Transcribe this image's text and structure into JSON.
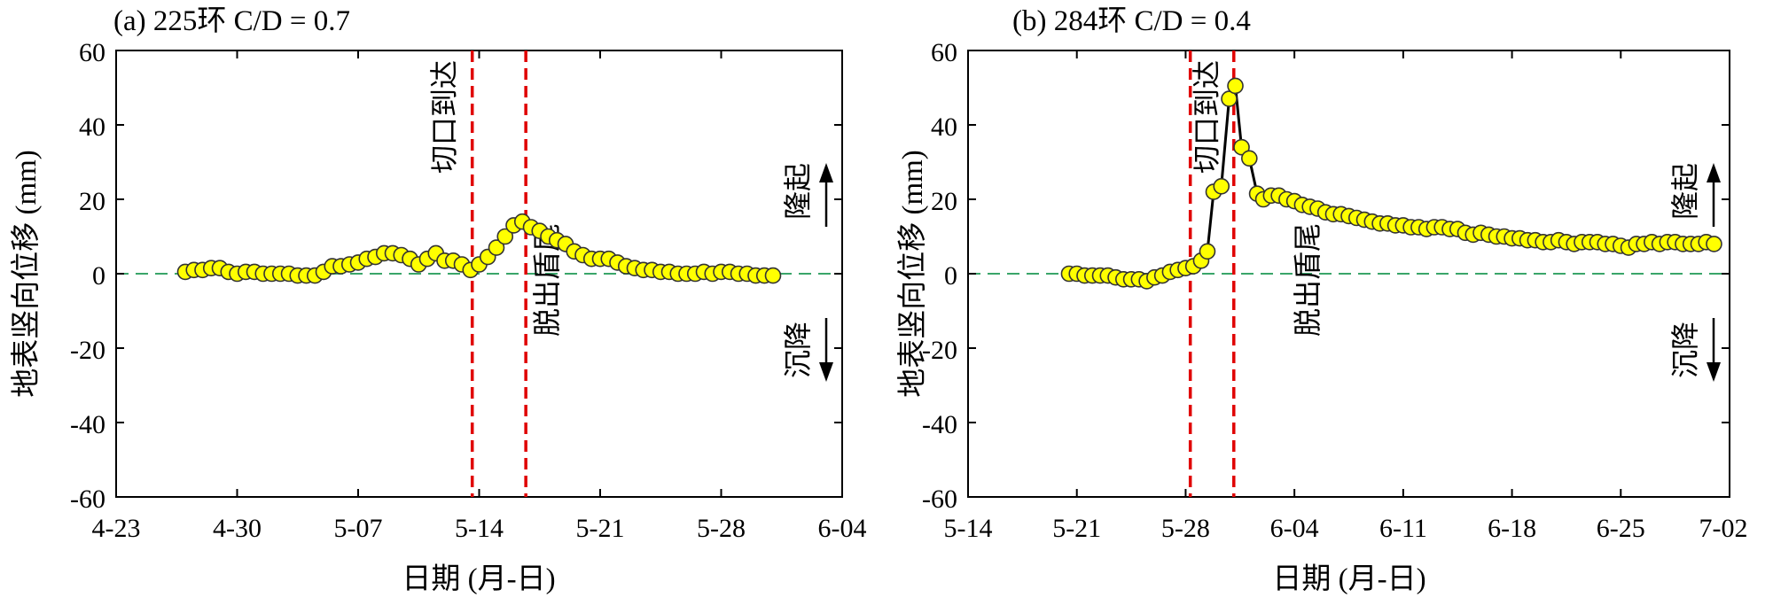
{
  "chart_data": [
    {
      "id": "a",
      "type": "line",
      "title": "(a) 225环 C/D = 0.7",
      "xlabel": "日期 (月-日)",
      "ylabel": "地表竖向位移 (mm)",
      "xlim_day": [
        0,
        42
      ],
      "ylim": [
        -60,
        60
      ],
      "yticks": [
        60,
        40,
        20,
        0,
        -20,
        -40,
        -60
      ],
      "yticklabels": [
        "60",
        "40",
        "20",
        "0",
        "-20",
        "-40",
        "-60"
      ],
      "xticks": [
        0,
        7,
        14,
        21,
        28,
        35,
        42
      ],
      "xticklabels": [
        "4-23",
        "4-30",
        "5-07",
        "5-14",
        "5-21",
        "5-28",
        "6-04"
      ],
      "show_line": false,
      "zero_line": 0,
      "vlines": [
        {
          "x": 20.6,
          "label": "切口到达"
        },
        {
          "x": 23.7,
          "label": "脱出盾尾"
        }
      ],
      "arrows": {
        "up": "隆起",
        "down": "沉降"
      },
      "series": [
        {
          "name": "vertical displacement",
          "x": [
            4.0,
            4.5,
            5.0,
            5.5,
            6.0,
            6.5,
            7.0,
            7.5,
            8.0,
            8.5,
            9.0,
            9.5,
            10.0,
            10.5,
            11.0,
            11.5,
            12.0,
            12.5,
            13.0,
            13.5,
            14.0,
            14.5,
            15.0,
            15.5,
            16.0,
            16.5,
            17.0,
            17.5,
            18.0,
            18.5,
            19.0,
            19.5,
            20.0,
            20.5,
            21.0,
            21.5,
            22.0,
            22.5,
            23.0,
            23.5,
            24.0,
            24.5,
            25.0,
            25.5,
            26.0,
            26.5,
            27.0,
            27.5,
            28.0,
            28.5,
            29.0,
            29.5,
            30.0,
            30.5,
            31.0,
            31.5,
            32.0,
            32.5,
            33.0,
            33.5,
            34.0,
            34.5,
            35.0,
            35.5,
            36.0,
            36.5,
            37.0,
            37.5,
            38.0
          ],
          "y": [
            0.5,
            1.0,
            1.0,
            1.5,
            1.5,
            0.5,
            0.0,
            0.5,
            0.5,
            0.0,
            0.0,
            0.0,
            0.0,
            -0.5,
            -0.5,
            -0.5,
            0.5,
            2.0,
            2.0,
            2.5,
            3.0,
            4.0,
            4.5,
            5.5,
            5.5,
            5.0,
            4.0,
            2.5,
            4.0,
            5.5,
            3.5,
            3.5,
            2.5,
            1.0,
            2.5,
            4.5,
            7.0,
            10.0,
            13.0,
            14.0,
            12.5,
            11.5,
            10.0,
            9.0,
            8.0,
            6.0,
            5.0,
            4.0,
            4.0,
            4.0,
            3.0,
            2.0,
            1.5,
            1.0,
            1.0,
            0.5,
            0.5,
            0.0,
            0.0,
            0.0,
            0.5,
            0.0,
            0.5,
            0.5,
            0.0,
            0.0,
            -0.5,
            -0.5,
            -0.5
          ]
        }
      ]
    },
    {
      "id": "b",
      "type": "line",
      "title": "(b) 284环 C/D = 0.4",
      "xlabel": "日期 (月-日)",
      "ylabel": "地表竖向位移 (mm)",
      "xlim_day": [
        0,
        49
      ],
      "ylim": [
        -60,
        60
      ],
      "yticks": [
        60,
        40,
        20,
        0,
        -20,
        -40,
        -60
      ],
      "yticklabels": [
        "60",
        "40",
        "20",
        "0",
        "-20",
        "-40",
        "-60"
      ],
      "xticks": [
        0,
        7,
        14,
        21,
        28,
        35,
        42,
        49
      ],
      "xticklabels": [
        "5-14",
        "5-21",
        "5-28",
        "6-04",
        "6-11",
        "6-18",
        "6-25",
        "7-02"
      ],
      "show_line": true,
      "zero_line": 0,
      "vlines": [
        {
          "x": 14.3,
          "label": "切口到达"
        },
        {
          "x": 17.1,
          "label": "脱出盾尾"
        }
      ],
      "arrows": {
        "up": "隆起",
        "down": "沉降"
      },
      "series": [
        {
          "name": "vertical displacement",
          "x": [
            6.5,
            7.0,
            7.5,
            8.0,
            8.5,
            9.0,
            9.5,
            10.0,
            10.5,
            11.0,
            11.5,
            12.0,
            12.5,
            13.0,
            13.5,
            14.0,
            14.5,
            15.0,
            15.4,
            15.8,
            16.3,
            16.8,
            17.2,
            17.6,
            18.1,
            18.6,
            19.0,
            19.5,
            20.0,
            20.5,
            21.0,
            21.5,
            22.0,
            22.5,
            23.0,
            23.5,
            24.0,
            24.5,
            25.0,
            25.5,
            26.0,
            26.5,
            27.0,
            27.5,
            28.0,
            28.5,
            29.0,
            29.5,
            30.0,
            30.5,
            31.0,
            31.5,
            32.0,
            32.5,
            33.0,
            33.5,
            34.0,
            34.5,
            35.0,
            35.5,
            36.0,
            36.5,
            37.0,
            37.5,
            38.0,
            38.5,
            39.0,
            39.5,
            40.0,
            40.5,
            41.0,
            41.5,
            42.0,
            42.5,
            43.0,
            43.5,
            44.0,
            44.5,
            45.0,
            45.5,
            46.0,
            46.5,
            47.0,
            47.5,
            48.0
          ],
          "y": [
            0.0,
            0.0,
            -0.5,
            -0.5,
            -0.5,
            -0.5,
            -1.0,
            -1.5,
            -1.5,
            -1.5,
            -2.0,
            -1.0,
            -0.5,
            0.5,
            1.0,
            1.5,
            2.0,
            3.5,
            6.0,
            22.0,
            23.5,
            47.0,
            50.5,
            34.0,
            31.0,
            21.5,
            20.0,
            21.0,
            21.0,
            20.0,
            19.5,
            18.5,
            18.0,
            17.5,
            16.5,
            16.0,
            16.0,
            15.5,
            15.0,
            14.5,
            14.0,
            13.5,
            13.5,
            13.0,
            13.0,
            12.5,
            12.5,
            12.0,
            12.5,
            12.5,
            12.0,
            12.0,
            11.0,
            10.5,
            11.0,
            10.5,
            10.0,
            10.0,
            9.5,
            9.5,
            9.0,
            9.0,
            8.5,
            8.5,
            9.0,
            8.5,
            8.0,
            8.5,
            8.5,
            8.5,
            8.0,
            8.0,
            7.5,
            7.0,
            8.0,
            8.0,
            8.5,
            8.0,
            8.5,
            8.5,
            8.0,
            8.0,
            8.0,
            8.5,
            8.0
          ]
        }
      ]
    }
  ]
}
